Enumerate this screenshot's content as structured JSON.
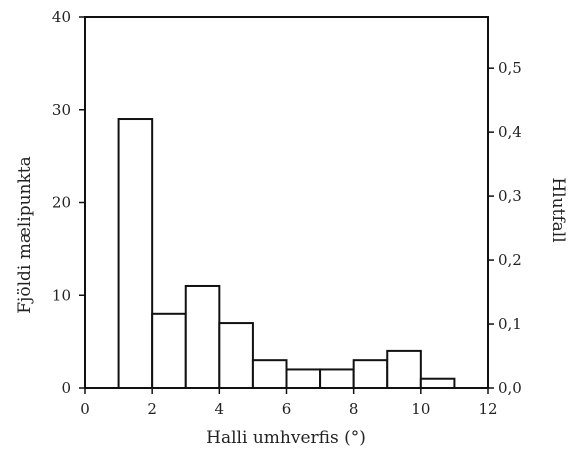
{
  "chart_data": {
    "type": "bar",
    "xlabel": "Halli umhverfis (°)",
    "ylabel": "Fjöldi mælipunkta",
    "y2label": "Hlutfall",
    "xlim": [
      0,
      12
    ],
    "ylim": [
      0,
      40
    ],
    "y2lim": [
      0,
      0.58
    ],
    "x_ticks": [
      "0",
      "2",
      "4",
      "6",
      "8",
      "10",
      "12"
    ],
    "y_ticks": [
      "0",
      "10",
      "20",
      "30",
      "40"
    ],
    "y2_ticks": [
      "0,0",
      "0,1",
      "0,2",
      "0,3",
      "0,4",
      "0,5"
    ],
    "bins": [
      {
        "x0": 1,
        "x1": 2,
        "value": 29
      },
      {
        "x0": 2,
        "x1": 3,
        "value": 8
      },
      {
        "x0": 3,
        "x1": 4,
        "value": 11
      },
      {
        "x0": 4,
        "x1": 5,
        "value": 7
      },
      {
        "x0": 5,
        "x1": 6,
        "value": 3
      },
      {
        "x0": 6,
        "x1": 7,
        "value": 2
      },
      {
        "x0": 7,
        "x1": 8,
        "value": 2
      },
      {
        "x0": 8,
        "x1": 9,
        "value": 3
      },
      {
        "x0": 9,
        "x1": 10,
        "value": 4
      },
      {
        "x0": 10,
        "x1": 11,
        "value": 1
      }
    ],
    "grid": false
  }
}
